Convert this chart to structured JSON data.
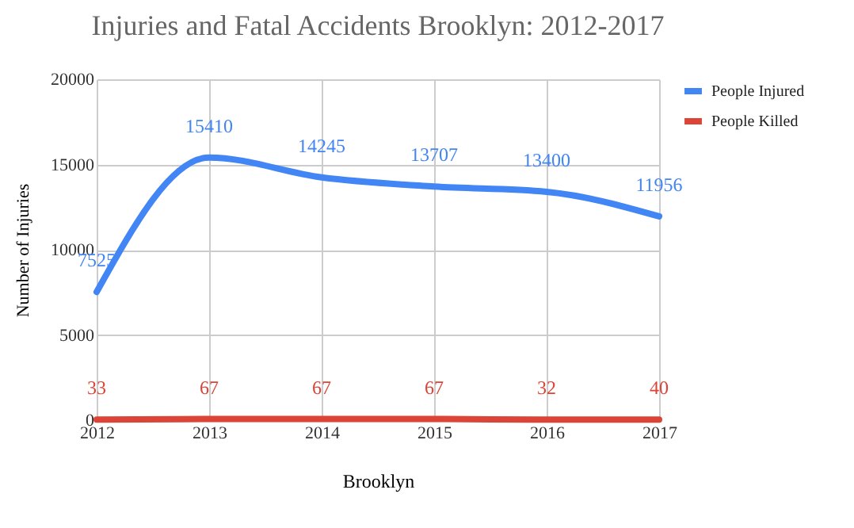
{
  "chart_data": {
    "type": "line",
    "title": "Injuries and Fatal Accidents Brooklyn: 2012-2017",
    "xlabel": "Brooklyn",
    "ylabel": "Number of Injuries",
    "x": [
      2012,
      2013,
      2014,
      2015,
      2016,
      2017
    ],
    "series": [
      {
        "name": "People Injured",
        "color": "#4285f4",
        "values": [
          7525,
          15410,
          14245,
          13707,
          13400,
          11956
        ]
      },
      {
        "name": "People Killed",
        "color": "#db4437",
        "values": [
          33,
          67,
          67,
          67,
          32,
          40
        ]
      }
    ],
    "xlim": [
      2012,
      2017
    ],
    "xticks": [
      2012,
      2013,
      2014,
      2015,
      2016,
      2017
    ],
    "ylim": [
      0,
      20000
    ],
    "yticks": [
      0,
      5000,
      10000,
      15000,
      20000
    ],
    "grid": true,
    "legend": "top right",
    "data_labels": true,
    "marker": "none",
    "line_style": "solid"
  }
}
